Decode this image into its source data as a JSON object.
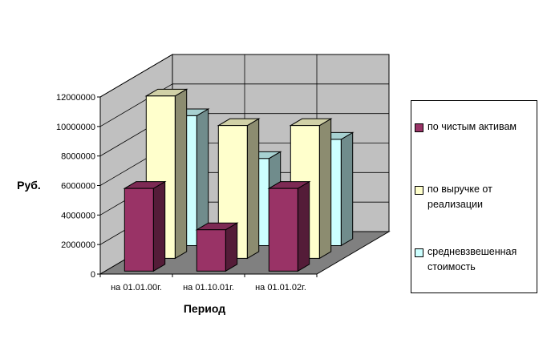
{
  "chart_data": {
    "type": "bar",
    "projection": "3d-column",
    "categories": [
      "на 01.01.00г.",
      "на 01.10.01г.",
      "на 01.01.02г."
    ],
    "series": [
      {
        "name": "по чистым активам",
        "values": [
          5600000,
          2800000,
          5600000
        ]
      },
      {
        "name": "по выручке от реализации",
        "values": [
          11000000,
          9000000,
          9000000
        ]
      },
      {
        "name": "средневзвешенная стоимость",
        "values": [
          8800000,
          5900000,
          7200000
        ]
      }
    ],
    "xlabel": "Период",
    "ylabel": "Руб.",
    "ylim": [
      0,
      12000000
    ],
    "yticks": [
      "0",
      "2000000",
      "4000000",
      "6000000",
      "8000000",
      "10000000",
      "12000000"
    ],
    "grid": true,
    "legend_position": "right"
  },
  "legend": {
    "items": [
      {
        "label": "по чистым активам",
        "color": "#993366"
      },
      {
        "label": "по выручке от реализации",
        "color": "#ffffcc"
      },
      {
        "label": "средневзвешенная стоимость",
        "color": "#ccffff"
      }
    ]
  },
  "colors": {
    "walls": "#c0c0c0",
    "floor": "#808080"
  }
}
